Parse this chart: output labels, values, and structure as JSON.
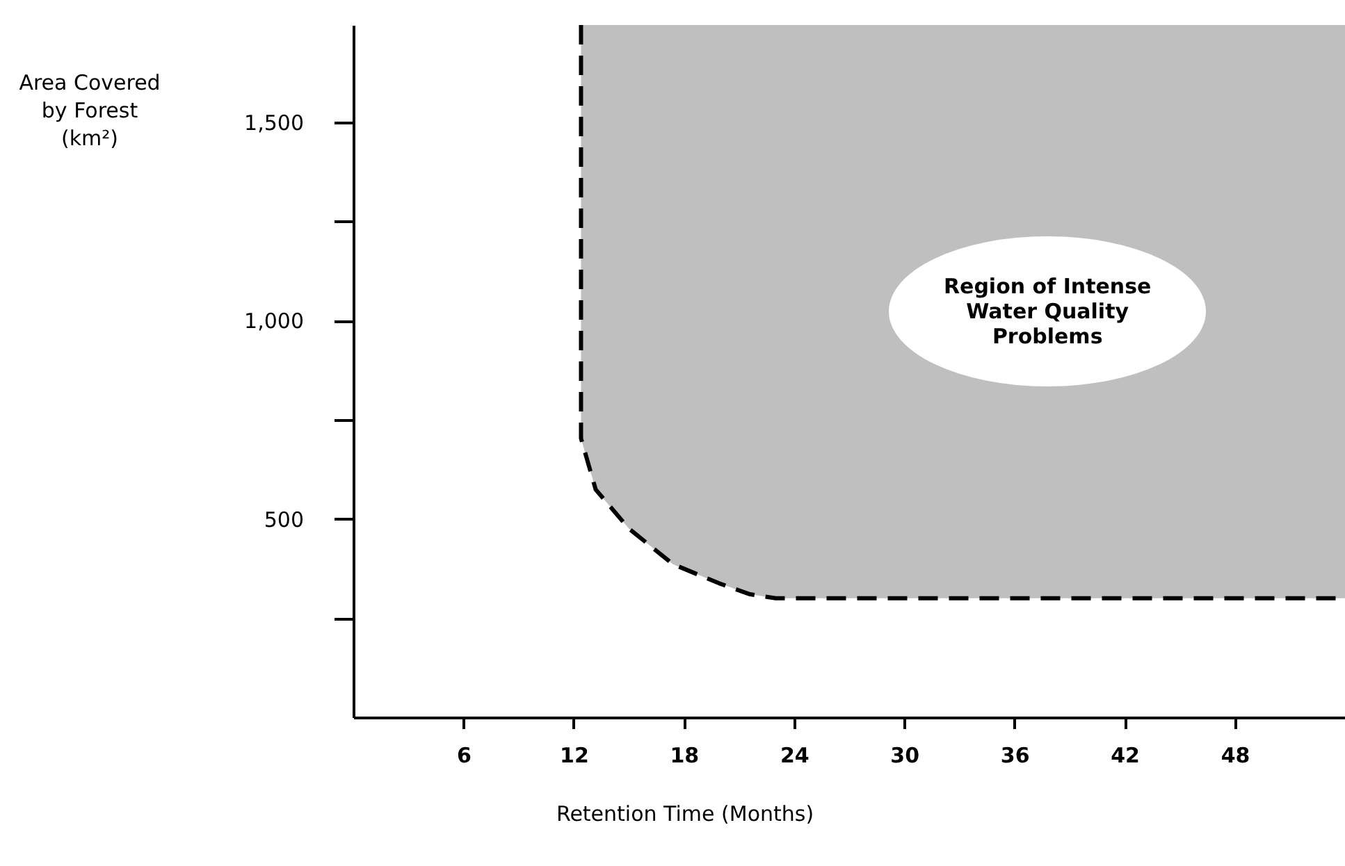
{
  "chart_data": {
    "type": "line",
    "xlabel": "Retention Time (Months)",
    "ylabel": "Area Covered\nby Forest\n(km²)",
    "xlim": [
      0,
      54
    ],
    "xticks": [
      6,
      12,
      18,
      24,
      30,
      36,
      42,
      48
    ],
    "ylim": [
      0,
      1745
    ],
    "yticks": [
      {
        "value": 250,
        "label": null
      },
      500,
      {
        "value": 750,
        "label": null
      },
      {
        "value": 1000,
        "label": "1,000"
      },
      {
        "value": 1250,
        "label": null
      },
      {
        "value": 1500,
        "label": "1,500"
      }
    ],
    "grid": false,
    "marker": "none",
    "annotations": [
      "Region of Intense\nWater Quality\nProblems"
    ],
    "series": [
      {
        "color": "#000000",
        "line_style": "dashed",
        "x": [
          12.4,
          12.4,
          13.2,
          15.0,
          17.4,
          19.9,
          21.6,
          23,
          54
        ],
        "values": [
          1745,
          703,
          574,
          476,
          386,
          338,
          310,
          300,
          300
        ],
        "lower": [
          1745,
          703,
          574,
          476,
          386,
          338,
          310,
          300,
          300
        ],
        "upper": [
          1745,
          1745,
          1745,
          1745,
          1745,
          1745,
          1745,
          1745,
          1745
        ]
      }
    ]
  }
}
